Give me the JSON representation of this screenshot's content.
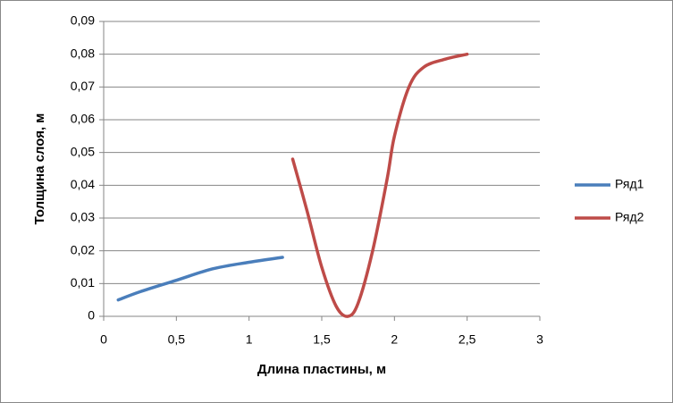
{
  "chart_data": {
    "type": "line",
    "x_label": "Длина пластины, м",
    "y_label": "Толщина слоя, м",
    "series": [
      {
        "name": "Ряд1",
        "color": "#4a7ebb",
        "x": [
          0.1,
          0.25,
          0.5,
          0.75,
          1.0,
          1.23
        ],
        "values": [
          0.005,
          0.0075,
          0.011,
          0.0145,
          0.0165,
          0.018
        ]
      },
      {
        "name": "Ряд2",
        "color": "#be4b48",
        "x": [
          1.3,
          1.4,
          1.5,
          1.6,
          1.68,
          1.75,
          1.85,
          1.95,
          2.0,
          2.1,
          2.2,
          2.35,
          2.5
        ],
        "values": [
          0.048,
          0.032,
          0.015,
          0.003,
          0,
          0.004,
          0.02,
          0.042,
          0.055,
          0.07,
          0.076,
          0.0785,
          0.08
        ]
      }
    ],
    "xlim": [
      0,
      3
    ],
    "xticks": [
      0,
      {
        "value": 0.5,
        "label": "0,5"
      },
      1,
      {
        "value": 1.5,
        "label": "1,5"
      },
      2,
      {
        "value": 2.5,
        "label": "2,5"
      },
      3
    ],
    "ylim": [
      0,
      0.09
    ],
    "yticks": [
      0,
      {
        "value": 0.01,
        "label": "0,01"
      },
      {
        "value": 0.02,
        "label": "0,02"
      },
      {
        "value": 0.03,
        "label": "0,03"
      },
      {
        "value": 0.04,
        "label": "0,04"
      },
      {
        "value": 0.05,
        "label": "0,05"
      },
      {
        "value": 0.06,
        "label": "0,06"
      },
      {
        "value": 0.07,
        "label": "0,07"
      },
      {
        "value": 0.08,
        "label": "0,08"
      },
      {
        "value": 0.09,
        "label": "0,09"
      }
    ],
    "grid": true,
    "legend": "right"
  }
}
